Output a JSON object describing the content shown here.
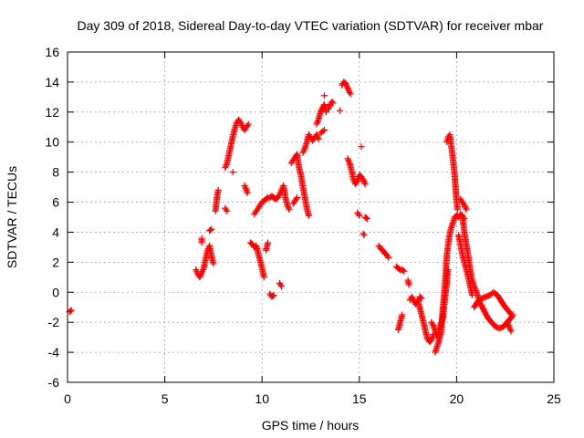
{
  "chart_data": {
    "type": "scatter",
    "title": "Day 309 of 2018, Sidereal Day-to-day VTEC variation (SDTVAR) for receiver mbar",
    "xlabel": "GPS time / hours",
    "ylabel": "SDTVAR / TECUs",
    "xlim": [
      0,
      25
    ],
    "ylim": [
      -6,
      16
    ],
    "xticks": [
      0,
      5,
      10,
      15,
      20,
      25
    ],
    "yticks": [
      -6,
      -4,
      -2,
      0,
      2,
      4,
      6,
      8,
      10,
      12,
      14,
      16
    ],
    "grid": true,
    "marker": "+",
    "colors": {
      "series": "#ff0000",
      "grid": "#a0a0a0",
      "axis": "#000000"
    },
    "segments": [
      [
        [
          0.1,
          -1.3
        ],
        [
          0.2,
          -1.2
        ]
      ],
      [
        [
          6.6,
          1.5
        ],
        [
          6.7,
          1.2
        ],
        [
          6.8,
          1.0
        ],
        [
          6.9,
          1.3
        ],
        [
          7.0,
          1.6
        ],
        [
          7.1,
          2.2
        ],
        [
          7.2,
          2.8
        ],
        [
          7.3,
          3.1
        ],
        [
          7.4,
          2.4
        ],
        [
          7.5,
          1.9
        ]
      ],
      [
        [
          6.9,
          3.6
        ],
        [
          6.9,
          3.3
        ]
      ],
      [
        [
          7.3,
          4.1
        ],
        [
          7.4,
          4.2
        ]
      ],
      [
        [
          7.6,
          5.4
        ],
        [
          7.7,
          6.5
        ],
        [
          7.75,
          6.8
        ]
      ],
      [
        [
          8.1,
          5.6
        ],
        [
          8.2,
          5.4
        ]
      ],
      [
        [
          8.1,
          8.3
        ],
        [
          8.2,
          8.6
        ],
        [
          8.3,
          9.2
        ],
        [
          8.4,
          9.8
        ],
        [
          8.5,
          10.4
        ],
        [
          8.6,
          10.9
        ],
        [
          8.7,
          11.3
        ],
        [
          8.8,
          11.5
        ],
        [
          8.9,
          11.3
        ],
        [
          9.0,
          11.0
        ],
        [
          9.1,
          10.8
        ],
        [
          9.2,
          11.0
        ],
        [
          9.3,
          11.2
        ]
      ],
      [
        [
          8.5,
          8.0
        ]
      ],
      [
        [
          9.1,
          7.1
        ],
        [
          9.2,
          6.8
        ],
        [
          9.25,
          6.6
        ]
      ],
      [
        [
          9.4,
          3.3
        ],
        [
          9.5,
          3.2
        ],
        [
          9.6,
          3.0
        ],
        [
          9.7,
          3.1
        ],
        [
          9.8,
          2.6
        ],
        [
          9.9,
          2.1
        ],
        [
          10.0,
          1.6
        ],
        [
          10.1,
          1.0
        ]
      ],
      [
        [
          9.6,
          5.2
        ],
        [
          9.7,
          5.4
        ],
        [
          9.8,
          5.6
        ],
        [
          9.9,
          5.8
        ],
        [
          10.0,
          6.0
        ],
        [
          10.1,
          6.1
        ],
        [
          10.2,
          6.2
        ],
        [
          10.3,
          6.3
        ],
        [
          10.4,
          6.3
        ],
        [
          10.5,
          6.4
        ],
        [
          10.6,
          6.3
        ],
        [
          10.7,
          6.2
        ],
        [
          10.8,
          6.3
        ],
        [
          10.9,
          6.5
        ],
        [
          11.0,
          6.8
        ],
        [
          11.1,
          7.1
        ],
        [
          11.2,
          6.3
        ],
        [
          11.3,
          5.8
        ],
        [
          11.4,
          5.5
        ]
      ],
      [
        [
          10.2,
          2.8
        ],
        [
          10.3,
          3.3
        ]
      ],
      [
        [
          10.4,
          -0.1
        ],
        [
          10.5,
          -0.3
        ],
        [
          10.6,
          -0.2
        ]
      ],
      [
        [
          10.9,
          0.6
        ],
        [
          11.0,
          0.4
        ]
      ],
      [
        [
          11.5,
          8.6
        ],
        [
          11.6,
          8.8
        ],
        [
          11.7,
          9.0
        ],
        [
          11.8,
          9.2
        ],
        [
          11.9,
          8.3
        ],
        [
          12.0,
          7.8
        ],
        [
          12.1,
          7.0
        ],
        [
          12.2,
          6.3
        ],
        [
          12.3,
          5.6
        ],
        [
          12.4,
          5.1
        ]
      ],
      [
        [
          11.6,
          5.9
        ],
        [
          11.7,
          6.1
        ],
        [
          11.8,
          6.3
        ]
      ],
      [
        [
          12.1,
          9.3
        ],
        [
          12.2,
          9.6
        ],
        [
          12.3,
          10.0
        ],
        [
          12.4,
          10.5
        ],
        [
          12.5,
          10.3
        ],
        [
          12.6,
          10.1
        ],
        [
          12.7,
          10.3
        ],
        [
          12.8,
          10.5
        ],
        [
          12.9,
          10.2
        ]
      ],
      [
        [
          13.0,
          10.6
        ],
        [
          13.2,
          10.8
        ]
      ],
      [
        [
          12.8,
          11.2
        ],
        [
          12.9,
          11.5
        ],
        [
          13.0,
          12.0
        ],
        [
          13.2,
          12.5
        ],
        [
          13.3,
          12.0
        ]
      ],
      [
        [
          13.4,
          12.2
        ],
        [
          13.5,
          12.5
        ],
        [
          13.6,
          12.7
        ],
        [
          13.65,
          12.6
        ]
      ],
      [
        [
          13.2,
          13.1
        ]
      ],
      [
        [
          14.0,
          12.1
        ]
      ],
      [
        [
          14.1,
          13.8
        ],
        [
          14.2,
          14.0
        ],
        [
          14.3,
          13.9
        ],
        [
          14.4,
          13.6
        ],
        [
          14.5,
          13.3
        ],
        [
          14.55,
          13.2
        ]
      ],
      [
        [
          14.4,
          8.9
        ],
        [
          14.5,
          8.6
        ],
        [
          14.6,
          8.1
        ],
        [
          14.7,
          7.5
        ],
        [
          14.8,
          7.2
        ],
        [
          14.9,
          7.4
        ],
        [
          15.0,
          7.8
        ],
        [
          15.1,
          7.7
        ],
        [
          15.2,
          7.5
        ],
        [
          15.3,
          7.2
        ]
      ],
      [
        [
          15.1,
          9.7
        ]
      ],
      [
        [
          14.9,
          5.3
        ],
        [
          15.0,
          5.1
        ]
      ],
      [
        [
          15.3,
          5.0
        ],
        [
          15.4,
          4.9
        ]
      ],
      [
        [
          15.2,
          3.9
        ],
        [
          15.25,
          3.8
        ]
      ],
      [
        [
          16.0,
          3.1
        ],
        [
          16.1,
          2.9
        ],
        [
          16.2,
          2.8
        ],
        [
          16.3,
          2.6
        ],
        [
          16.4,
          2.5
        ],
        [
          16.5,
          2.3
        ]
      ],
      [
        [
          16.9,
          1.7
        ],
        [
          17.0,
          1.6
        ],
        [
          17.1,
          1.5
        ],
        [
          17.2,
          1.5
        ],
        [
          17.3,
          1.4
        ]
      ],
      [
        [
          17.0,
          -2.5
        ],
        [
          17.1,
          -2.0
        ],
        [
          17.2,
          -1.5
        ]
      ],
      [
        [
          17.6,
          -0.5
        ],
        [
          17.7,
          -0.3
        ],
        [
          17.8,
          -0.6
        ],
        [
          17.9,
          -0.8
        ],
        [
          18.0,
          -0.5
        ],
        [
          18.1,
          -1.0
        ],
        [
          18.2,
          -1.5
        ],
        [
          18.3,
          -2.0
        ],
        [
          18.4,
          -2.6
        ],
        [
          18.5,
          -3.1
        ],
        [
          18.6,
          -3.3
        ],
        [
          18.7,
          -3.2
        ],
        [
          18.8,
          -2.8
        ]
      ],
      [
        [
          17.5,
          0.8
        ],
        [
          17.55,
          0.5
        ]
      ],
      [
        [
          18.1,
          -0.3
        ],
        [
          18.2,
          -0.4
        ]
      ],
      [
        [
          18.7,
          -2.0
        ],
        [
          18.8,
          -2.2
        ],
        [
          18.9,
          -2.6
        ],
        [
          19.0,
          -3.0
        ],
        [
          19.1,
          -2.5
        ],
        [
          19.2,
          -2.1
        ],
        [
          19.3,
          -1.7
        ],
        [
          19.4,
          -0.4
        ],
        [
          19.5,
          0.6
        ],
        [
          19.55,
          1.5
        ]
      ],
      [
        [
          18.9,
          -4.0
        ],
        [
          19.0,
          -3.6
        ],
        [
          19.1,
          -3.2
        ],
        [
          19.2,
          -2.7
        ],
        [
          19.3,
          -1.0
        ],
        [
          19.4,
          0.5
        ],
        [
          19.5,
          2.5
        ],
        [
          19.6,
          3.5
        ],
        [
          19.7,
          4.2
        ],
        [
          19.8,
          4.6
        ],
        [
          19.9,
          5.0
        ],
        [
          20.0,
          5.1
        ],
        [
          20.1,
          5.0
        ],
        [
          20.2,
          5.2
        ],
        [
          20.3,
          5.1
        ],
        [
          20.4,
          4.9
        ]
      ],
      [
        [
          19.5,
          10.0
        ],
        [
          19.6,
          10.4
        ],
        [
          19.65,
          10.5
        ],
        [
          19.7,
          10.0
        ],
        [
          19.8,
          9.0
        ],
        [
          19.9,
          7.8
        ],
        [
          20.0,
          6.0
        ],
        [
          20.05,
          5.5
        ]
      ],
      [
        [
          20.2,
          6.2
        ],
        [
          20.3,
          6.0
        ],
        [
          20.4,
          5.8
        ],
        [
          20.5,
          5.5
        ]
      ],
      [
        [
          20.1,
          3.8
        ],
        [
          20.2,
          3.2
        ],
        [
          20.3,
          2.5
        ],
        [
          20.4,
          2.0
        ],
        [
          20.5,
          1.5
        ],
        [
          20.6,
          1.0
        ],
        [
          20.7,
          0.4
        ],
        [
          20.8,
          -0.2
        ]
      ],
      [
        [
          20.3,
          5.0
        ],
        [
          20.4,
          4.0
        ],
        [
          20.5,
          3.2
        ],
        [
          20.6,
          2.4
        ],
        [
          20.7,
          1.5
        ],
        [
          20.8,
          0.8
        ],
        [
          20.9,
          0.4
        ],
        [
          21.0,
          0.1
        ],
        [
          21.1,
          -0.3
        ],
        [
          21.2,
          -0.7
        ],
        [
          21.4,
          -1.2
        ],
        [
          21.6,
          -1.7
        ],
        [
          21.8,
          -2.0
        ],
        [
          22.0,
          -2.3
        ],
        [
          22.2,
          -2.4
        ],
        [
          22.4,
          -2.3
        ],
        [
          22.6,
          -2.0
        ],
        [
          22.8,
          -1.7
        ],
        [
          22.9,
          -1.5
        ]
      ],
      [
        [
          20.9,
          -1.0
        ],
        [
          21.1,
          -0.6
        ],
        [
          21.3,
          -0.4
        ],
        [
          21.5,
          -0.3
        ],
        [
          21.7,
          -0.2
        ],
        [
          21.9,
          0.0
        ],
        [
          22.1,
          -0.2
        ],
        [
          22.3,
          -0.6
        ],
        [
          22.5,
          -1.0
        ],
        [
          22.7,
          -1.3
        ],
        [
          22.8,
          -1.5
        ]
      ],
      [
        [
          22.6,
          -2.0
        ],
        [
          22.7,
          -2.3
        ],
        [
          22.8,
          -2.6
        ]
      ]
    ]
  }
}
